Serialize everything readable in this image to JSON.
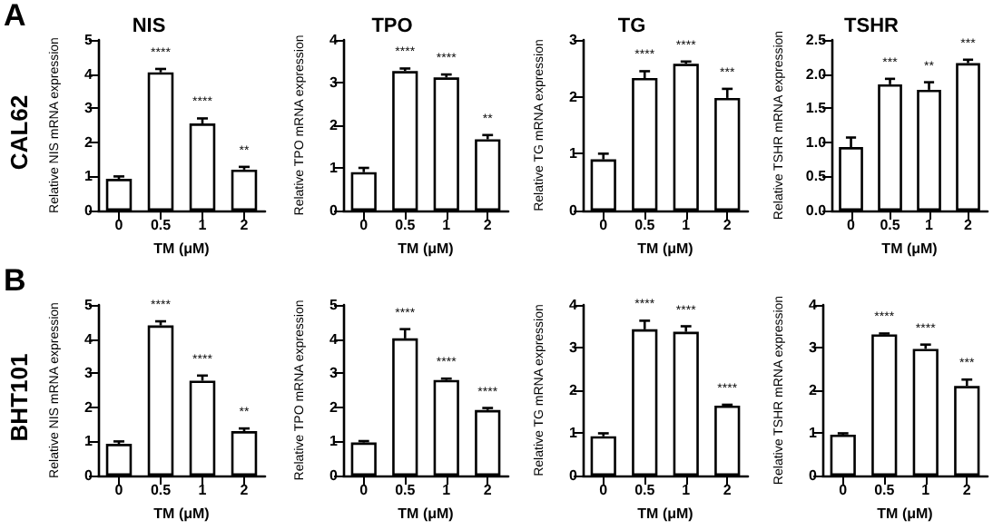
{
  "chart_data": [
    {
      "type": "bar",
      "title": "NIS",
      "xlabel": "TM (μM)",
      "ylabel": "Relative NIS mRNA expression",
      "categories": [
        "0",
        "0.5",
        "1",
        "2"
      ],
      "values": [
        0.93,
        4.05,
        2.55,
        1.2
      ],
      "errors": [
        [
          0.93,
          1.0
        ],
        [
          4.05,
          4.15
        ],
        [
          2.55,
          2.7
        ],
        [
          1.2,
          1.28
        ]
      ],
      "color": "#ffffff",
      "ylim": [
        0,
        5
      ],
      "yticks": [
        0,
        1,
        2,
        3,
        4,
        5
      ],
      "grid": false,
      "annotations": [
        "A",
        "CAL62",
        {
          "text": "****",
          "x": "0.5",
          "y": 4.15
        },
        {
          "text": "****",
          "x": "1",
          "y": 2.7
        },
        {
          "text": "**",
          "x": "2",
          "y": 1.28
        }
      ]
    },
    {
      "type": "bar",
      "title": "TPO",
      "xlabel": "TM (μM)",
      "ylabel": "Relative TPO mRNA expression",
      "categories": [
        "0",
        "0.5",
        "1",
        "2"
      ],
      "values": [
        0.9,
        3.27,
        3.12,
        1.67
      ],
      "errors": [
        [
          0.9,
          1.0
        ],
        [
          3.27,
          3.33
        ],
        [
          3.12,
          3.19
        ],
        [
          1.67,
          1.77
        ]
      ],
      "color": "#ffffff",
      "ylim": [
        0,
        4
      ],
      "yticks": [
        0,
        1,
        2,
        3,
        4
      ],
      "grid": false,
      "annotations": [
        {
          "text": "****",
          "x": "0.5",
          "y": 3.33
        },
        {
          "text": "****",
          "x": "1",
          "y": 3.19
        },
        {
          "text": "**",
          "x": "2",
          "y": 1.77
        }
      ]
    },
    {
      "type": "bar",
      "title": "TG",
      "xlabel": "TM (μM)",
      "ylabel": "Relative TG mRNA expression",
      "categories": [
        "0",
        "0.5",
        "1",
        "2"
      ],
      "values": [
        0.9,
        2.33,
        2.58,
        1.98
      ],
      "errors": [
        [
          0.9,
          1.0
        ],
        [
          2.33,
          2.45
        ],
        [
          2.58,
          2.62
        ],
        [
          1.98,
          2.14
        ]
      ],
      "color": "#ffffff",
      "ylim": [
        0,
        3
      ],
      "yticks": [
        0,
        1,
        2,
        3
      ],
      "grid": false,
      "annotations": [
        {
          "text": "****",
          "x": "0.5",
          "y": 2.45
        },
        {
          "text": "****",
          "x": "1",
          "y": 2.62
        },
        {
          "text": "***",
          "x": "2",
          "y": 2.14
        }
      ]
    },
    {
      "type": "bar",
      "title": "TSHR",
      "xlabel": "TM (μM)",
      "ylabel": "Relative TSHR mRNA expression",
      "categories": [
        "0",
        "0.5",
        "1",
        "2"
      ],
      "values": [
        0.93,
        1.85,
        1.77,
        2.16
      ],
      "errors": [
        [
          0.93,
          1.07
        ],
        [
          1.85,
          1.93
        ],
        [
          1.77,
          1.88
        ],
        [
          2.16,
          2.21
        ]
      ],
      "color": "#ffffff",
      "ylim": [
        0,
        2.5
      ],
      "yticks": [
        {
          "value": 0,
          "label": "0.0"
        },
        {
          "value": 0.5,
          "label": "0.5"
        },
        {
          "value": 1,
          "label": "1.0"
        },
        {
          "value": 1.5,
          "label": "1.5"
        },
        {
          "value": 2,
          "label": "2.0"
        },
        {
          "value": 2.5,
          "label": "2.5"
        }
      ],
      "grid": false,
      "annotations": [
        {
          "text": "***",
          "x": "0.5",
          "y": 1.93
        },
        {
          "text": "**",
          "x": "1",
          "y": 1.88
        },
        {
          "text": "***",
          "x": "2",
          "y": 2.21
        }
      ]
    },
    {
      "type": "bar",
      "xlabel": "TM (μM)",
      "ylabel": "Relative NIS mRNA expression",
      "categories": [
        "0",
        "0.5",
        "1",
        "2"
      ],
      "values": [
        0.93,
        4.4,
        2.78,
        1.3
      ],
      "errors": [
        [
          0.93,
          1.0
        ],
        [
          4.4,
          4.52
        ],
        [
          2.78,
          2.93
        ],
        [
          1.3,
          1.38
        ]
      ],
      "color": "#ffffff",
      "ylim": [
        0,
        5
      ],
      "yticks": [
        0,
        1,
        2,
        3,
        4,
        5
      ],
      "grid": false,
      "annotations": [
        "B",
        "BHT101",
        {
          "text": "****",
          "x": "0.5",
          "y": 4.52
        },
        {
          "text": "****",
          "x": "1",
          "y": 2.93
        },
        {
          "text": "**",
          "x": "2",
          "y": 1.38
        }
      ]
    },
    {
      "type": "bar",
      "xlabel": "TM (μM)",
      "ylabel": "Relative TPO mRNA expression",
      "categories": [
        "0",
        "0.5",
        "1",
        "2"
      ],
      "values": [
        0.97,
        4.02,
        2.8,
        1.92
      ],
      "errors": [
        [
          0.97,
          1.01
        ],
        [
          4.02,
          4.29
        ],
        [
          2.8,
          2.84
        ],
        [
          1.92,
          1.98
        ]
      ],
      "color": "#ffffff",
      "ylim": [
        0,
        5
      ],
      "yticks": [
        0,
        1,
        2,
        3,
        4,
        5
      ],
      "grid": false,
      "annotations": [
        {
          "text": "****",
          "x": "0.5",
          "y": 4.29
        },
        {
          "text": "****",
          "x": "1",
          "y": 2.84
        },
        {
          "text": "****",
          "x": "2",
          "y": 1.98
        }
      ]
    },
    {
      "type": "bar",
      "xlabel": "TM (μM)",
      "ylabel": "Relative TG mRNA expression",
      "categories": [
        "0",
        "0.5",
        "1",
        "2"
      ],
      "values": [
        0.92,
        3.43,
        3.37,
        1.64
      ],
      "errors": [
        [
          0.92,
          0.99
        ],
        [
          3.43,
          3.63
        ],
        [
          3.37,
          3.5
        ],
        [
          1.64,
          1.66
        ]
      ],
      "color": "#ffffff",
      "ylim": [
        0,
        4
      ],
      "yticks": [
        0,
        1,
        2,
        3,
        4
      ],
      "grid": false,
      "annotations": [
        {
          "text": "****",
          "x": "0.5",
          "y": 3.63
        },
        {
          "text": "****",
          "x": "1",
          "y": 3.5
        },
        {
          "text": "****",
          "x": "2",
          "y": 1.66
        }
      ]
    },
    {
      "type": "bar",
      "xlabel": "TM (μM)",
      "ylabel": "Relative TSHR mRNA expression",
      "categories": [
        "0",
        "0.5",
        "1",
        "2"
      ],
      "values": [
        0.96,
        3.31,
        2.97,
        2.1
      ],
      "errors": [
        [
          0.96,
          0.99
        ],
        [
          3.31,
          3.33
        ],
        [
          2.97,
          3.07
        ],
        [
          2.1,
          2.25
        ]
      ],
      "color": "#ffffff",
      "ylim": [
        0,
        4
      ],
      "yticks": [
        0,
        1,
        2,
        3,
        4
      ],
      "grid": false,
      "annotations": [
        {
          "text": "****",
          "x": "0.5",
          "y": 3.33
        },
        {
          "text": "****",
          "x": "1",
          "y": 3.07
        },
        {
          "text": "***",
          "x": "2",
          "y": 2.25
        }
      ]
    }
  ]
}
